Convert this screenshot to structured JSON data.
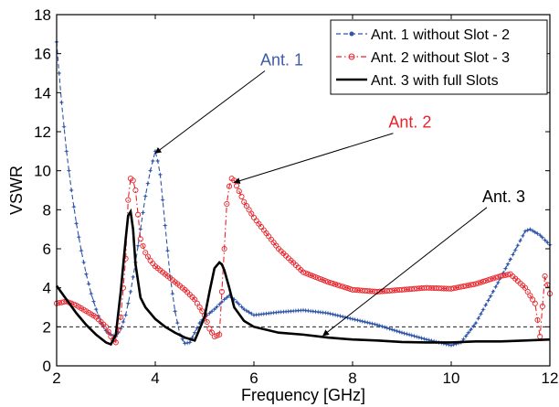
{
  "chart_data": {
    "type": "line",
    "xlabel": "Frequency [GHz]",
    "ylabel": "VSWR",
    "xlim": [
      2,
      12
    ],
    "ylim": [
      0,
      18
    ],
    "xticks": [
      2,
      4,
      6,
      8,
      10,
      12
    ],
    "yticks": [
      0,
      2,
      4,
      6,
      8,
      10,
      12,
      14,
      16,
      18
    ],
    "grid": false,
    "legend_position": "top-right",
    "reference_line": {
      "y": 2,
      "style": "dashed"
    },
    "series": [
      {
        "name": "Ant. 1 without Slot - 2",
        "color": "#2f55a8",
        "marker": "star",
        "dash": "dashed",
        "x": [
          2.0,
          2.05,
          2.1,
          2.2,
          2.3,
          2.4,
          2.5,
          2.6,
          2.7,
          2.8,
          2.9,
          3.0,
          3.1,
          3.2,
          3.3,
          3.4,
          3.5,
          3.6,
          3.7,
          3.8,
          3.9,
          4.0,
          4.05,
          4.1,
          4.2,
          4.3,
          4.4,
          4.5,
          4.6,
          4.7,
          4.8,
          4.9,
          5.0,
          5.2,
          5.4,
          5.5,
          5.6,
          5.8,
          6.0,
          6.5,
          7.0,
          7.5,
          8.0,
          8.5,
          9.0,
          9.5,
          10.0,
          10.2,
          10.5,
          11.0,
          11.5,
          11.6,
          11.8,
          12.0
        ],
        "values": [
          16.6,
          15.0,
          13.5,
          11.0,
          9.0,
          7.3,
          5.9,
          4.7,
          3.7,
          2.9,
          2.2,
          1.8,
          1.6,
          1.5,
          1.9,
          2.6,
          3.8,
          5.3,
          7.0,
          8.7,
          10.0,
          11.0,
          10.5,
          9.8,
          7.2,
          4.6,
          2.8,
          1.6,
          1.15,
          1.2,
          1.7,
          2.2,
          2.5,
          2.9,
          3.4,
          3.6,
          3.4,
          2.9,
          2.6,
          2.75,
          2.85,
          2.7,
          2.4,
          2.1,
          1.7,
          1.35,
          1.05,
          1.2,
          2.2,
          4.5,
          6.9,
          7.0,
          6.7,
          6.2
        ]
      },
      {
        "name": "Ant. 2 without Slot - 3",
        "color": "#e8242b",
        "marker": "circle",
        "dash": "dashdot",
        "x": [
          2.0,
          2.2,
          2.4,
          2.6,
          2.8,
          3.0,
          3.1,
          3.2,
          3.3,
          3.4,
          3.45,
          3.5,
          3.55,
          3.6,
          3.7,
          3.8,
          3.9,
          4.0,
          4.2,
          4.4,
          4.6,
          4.8,
          5.0,
          5.1,
          5.2,
          5.3,
          5.4,
          5.45,
          5.5,
          5.55,
          5.6,
          5.8,
          6.0,
          6.5,
          7.0,
          7.5,
          8.0,
          8.5,
          9.0,
          9.5,
          10.0,
          10.5,
          11.0,
          11.2,
          11.5,
          11.7,
          11.8,
          11.9,
          12.0
        ],
        "values": [
          3.2,
          3.3,
          3.1,
          2.8,
          2.5,
          2.0,
          1.5,
          1.2,
          2.5,
          5.5,
          8.5,
          9.6,
          9.5,
          9.0,
          6.5,
          5.8,
          5.4,
          5.1,
          4.7,
          4.3,
          3.9,
          3.4,
          2.6,
          1.9,
          1.5,
          1.6,
          6.0,
          8.3,
          9.2,
          9.6,
          9.5,
          8.4,
          7.6,
          6.0,
          4.8,
          4.3,
          3.9,
          3.8,
          3.9,
          4.0,
          3.95,
          4.2,
          4.6,
          4.7,
          4.0,
          3.2,
          1.5,
          4.6,
          3.7
        ]
      },
      {
        "name": "Ant. 3 with full Slots",
        "color": "#000000",
        "marker": "none",
        "dash": "solid",
        "x": [
          2.0,
          2.2,
          2.4,
          2.6,
          2.8,
          3.0,
          3.1,
          3.2,
          3.3,
          3.4,
          3.45,
          3.5,
          3.55,
          3.6,
          3.7,
          3.8,
          4.0,
          4.2,
          4.4,
          4.6,
          4.8,
          5.0,
          5.1,
          5.2,
          5.3,
          5.35,
          5.4,
          5.5,
          5.6,
          5.8,
          6.0,
          6.5,
          7.0,
          7.5,
          8.0,
          8.5,
          9.0,
          9.5,
          10.0,
          10.5,
          11.0,
          11.5,
          12.0
        ],
        "values": [
          4.1,
          3.4,
          2.7,
          2.1,
          1.6,
          1.2,
          1.1,
          1.6,
          3.8,
          6.5,
          7.7,
          7.9,
          7.0,
          5.2,
          3.5,
          3.0,
          2.4,
          2.0,
          1.7,
          1.45,
          1.3,
          2.5,
          3.8,
          5.0,
          5.3,
          5.2,
          4.9,
          4.0,
          3.0,
          2.3,
          2.0,
          1.7,
          1.6,
          1.45,
          1.35,
          1.3,
          1.22,
          1.2,
          1.2,
          1.25,
          1.25,
          1.3,
          1.35
        ]
      }
    ],
    "annotations": [
      {
        "text": "Ant. 1",
        "color": "#3e5ca8",
        "label_at": [
          7.0,
          15.4
        ],
        "arrow_to": [
          4.0,
          10.9
        ]
      },
      {
        "text": "Ant. 2",
        "color": "#e8242b",
        "label_at": [
          9.6,
          12.2
        ],
        "arrow_to": [
          5.6,
          9.4
        ]
      },
      {
        "text": "Ant. 3",
        "color": "#000000",
        "label_at": [
          11.5,
          8.4
        ],
        "arrow_to": [
          7.4,
          1.55
        ]
      }
    ]
  }
}
